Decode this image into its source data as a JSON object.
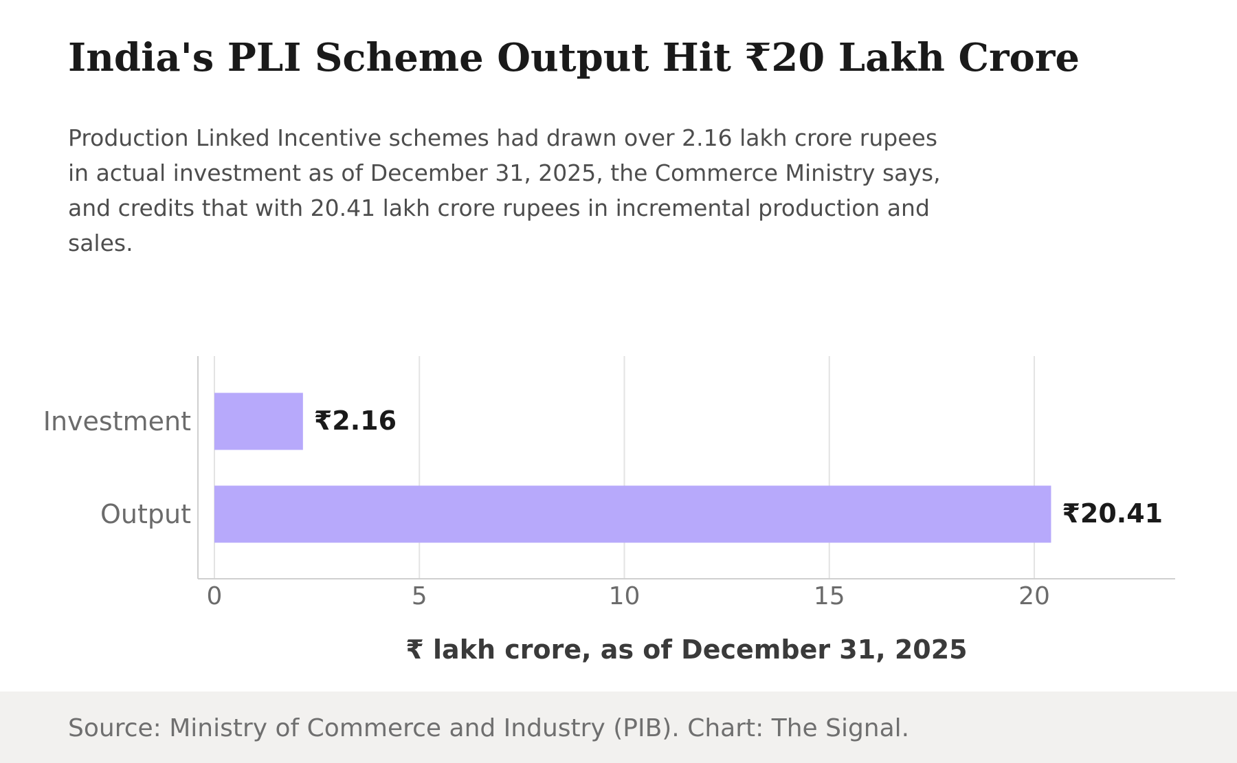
{
  "header": {
    "title": "India's PLI Scheme Output Hit ₹20 Lakh Crore",
    "subtitle": "Production Linked Incentive schemes had drawn over 2.16 lakh crore rupees in actual investment as of December 31, 2025, the Commerce Ministry says, and credits that with 20.41 lakh crore rupees in incremental production and sales."
  },
  "chart_data": {
    "type": "bar",
    "orientation": "horizontal",
    "categories": [
      "Investment",
      "Output"
    ],
    "values": [
      2.16,
      20.41
    ],
    "value_labels": [
      "₹2.16",
      "₹20.41"
    ],
    "xlabel": "₹ lakh crore, as of December 31, 2025",
    "ylabel": "",
    "xlim": [
      0,
      23.5
    ],
    "xticks": [
      0,
      5,
      10,
      15,
      20
    ],
    "xtick_labels": [
      "0",
      "5",
      "10",
      "15",
      "20"
    ],
    "grid": "vertical",
    "bar_color": "#b7a9fb"
  },
  "footer": {
    "source": "Source: Ministry of Commerce and Industry (PIB). Chart: The Signal."
  },
  "colors": {
    "title": "#1a1a1a",
    "subtitle": "#4d4d4d",
    "tick_text": "#6b6b6b",
    "gridline": "#e3e3e3",
    "axis": "#cfcfcf",
    "footer_bg": "#f2f1ef"
  }
}
